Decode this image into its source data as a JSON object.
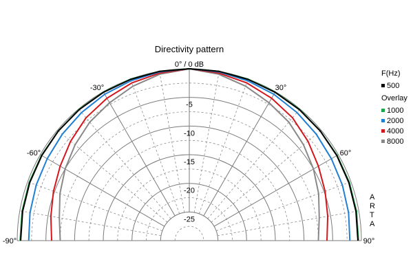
{
  "chart_data": {
    "type": "polar",
    "title": "Directivity pattern",
    "top_label": "0° / 0 dB",
    "angle_range": [
      -90,
      90
    ],
    "db_range": [
      -30,
      0
    ],
    "grid": true,
    "angle_labels": [
      {
        "angle": -90,
        "text": "-90°"
      },
      {
        "angle": -60,
        "text": "-60°"
      },
      {
        "angle": -30,
        "text": "-30°"
      },
      {
        "angle": 30,
        "text": "30°"
      },
      {
        "angle": 60,
        "text": "60°"
      },
      {
        "angle": 90,
        "text": "90°"
      }
    ],
    "db_ticks": [
      {
        "value": -5,
        "text": "-5"
      },
      {
        "value": -10,
        "text": "-10"
      },
      {
        "value": -15,
        "text": "-15"
      },
      {
        "value": -20,
        "text": "-20"
      },
      {
        "value": -25,
        "text": "-25"
      }
    ],
    "legend": {
      "title": "F(Hz)",
      "overlay_label": "Overlay",
      "placement": "right"
    },
    "watermark": "ARTA",
    "angles": [
      -90,
      -80,
      -70,
      -60,
      -50,
      -40,
      -30,
      -20,
      -10,
      0,
      10,
      20,
      30,
      40,
      50,
      60,
      70,
      80,
      90
    ],
    "series": [
      {
        "name": "500",
        "color": "#000000",
        "group": "main",
        "values": [
          -0.6,
          -0.5,
          -0.4,
          -0.3,
          -0.2,
          -0.15,
          -0.1,
          -0.05,
          0,
          0,
          0,
          -0.05,
          -0.1,
          -0.15,
          -0.2,
          -0.3,
          -0.4,
          -0.5,
          -0.6
        ]
      },
      {
        "name": "1000",
        "color": "#1aa64a",
        "group": "overlay",
        "values": [
          -0.5,
          -0.4,
          -0.3,
          -0.25,
          -0.2,
          -0.1,
          -0.05,
          0,
          0,
          0,
          0,
          0,
          -0.05,
          -0.1,
          -0.2,
          -0.25,
          -0.3,
          -0.4,
          -0.5
        ]
      },
      {
        "name": "2000",
        "color": "#1e7fd4",
        "group": "overlay",
        "values": [
          -2.0,
          -1.8,
          -1.6,
          -1.4,
          -1.1,
          -0.8,
          -0.5,
          -0.3,
          -0.1,
          0,
          -0.1,
          -0.3,
          -0.5,
          -0.8,
          -1.1,
          -1.4,
          -1.6,
          -1.8,
          -2.0
        ]
      },
      {
        "name": "4000",
        "color": "#d4161c",
        "group": "overlay",
        "values": [
          -6.0,
          -5.5,
          -4.8,
          -4.0,
          -3.0,
          -2.0,
          -1.3,
          -0.7,
          -0.3,
          0,
          -0.3,
          -0.7,
          -1.3,
          -2.0,
          -3.0,
          -4.0,
          -4.8,
          -5.5,
          -6.0
        ]
      },
      {
        "name": "8000",
        "color": "#888888",
        "group": "overlay",
        "values": [
          -7.5,
          -7.0,
          -6.0,
          -5.0,
          -4.0,
          -3.0,
          -2.2,
          -1.3,
          -0.5,
          0,
          -0.5,
          -1.3,
          -2.2,
          -3.0,
          -4.0,
          -5.0,
          -6.0,
          -7.0,
          -7.5
        ]
      }
    ]
  }
}
